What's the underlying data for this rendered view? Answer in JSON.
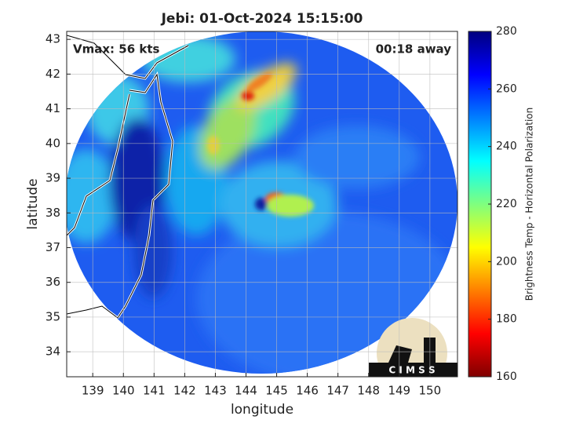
{
  "chart_data": {
    "type": "map",
    "title": "Jebi: 01-Oct-2024 15:15:00",
    "annotations": [
      "Vmax: 56 kts",
      "00:18 away"
    ],
    "xlabel": "longitude",
    "ylabel": "latitude",
    "xlim": [
      138.15,
      150.9
    ],
    "ylim": [
      33.28,
      43.23
    ],
    "xticks": [
      139,
      140,
      141,
      142,
      143,
      144,
      145,
      146,
      147,
      148,
      149,
      150
    ],
    "yticks": [
      34,
      35,
      36,
      37,
      38,
      39,
      40,
      41,
      42,
      43
    ],
    "grid": true,
    "colorbar": {
      "label": "Brightness Temp - Horizontal Polarization",
      "lim": [
        160,
        280
      ],
      "ticks": [
        160,
        180,
        200,
        220,
        240,
        260,
        280
      ],
      "colormap": "jet_r"
    },
    "logo": "C I M S S"
  }
}
